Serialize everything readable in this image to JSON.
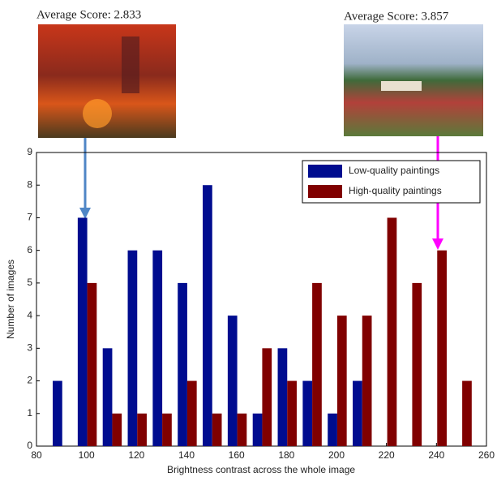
{
  "chart_data": {
    "type": "bar",
    "annotations": [
      "Average Score: 2.833",
      "Average Score: 3.857"
    ],
    "x_label": "Brightness contrast across the whole image",
    "y_label": "Number of images",
    "x": [
      90,
      100,
      110,
      120,
      130,
      140,
      150,
      160,
      170,
      180,
      190,
      200,
      210,
      220,
      230,
      240,
      250
    ],
    "series": [
      {
        "name": "Low-quality paintings",
        "color": "#000c8f",
        "values": [
          2,
          7,
          3,
          6,
          6,
          5,
          8,
          4,
          1,
          3,
          2,
          1,
          2,
          0,
          0,
          0,
          0
        ]
      },
      {
        "name": "High-quality paintings",
        "color": "#800000",
        "values": [
          0,
          5,
          1,
          1,
          1,
          2,
          1,
          1,
          3,
          2,
          5,
          4,
          4,
          7,
          5,
          6,
          2
        ]
      }
    ],
    "xlim": [
      80,
      260
    ],
    "xticks": [
      80,
      100,
      120,
      140,
      160,
      180,
      200,
      220,
      240,
      260
    ],
    "ylim": [
      0,
      9
    ],
    "yticks": [
      0,
      1,
      2,
      3,
      4,
      5,
      6,
      7,
      8,
      9
    ],
    "legend": "top-right"
  }
}
